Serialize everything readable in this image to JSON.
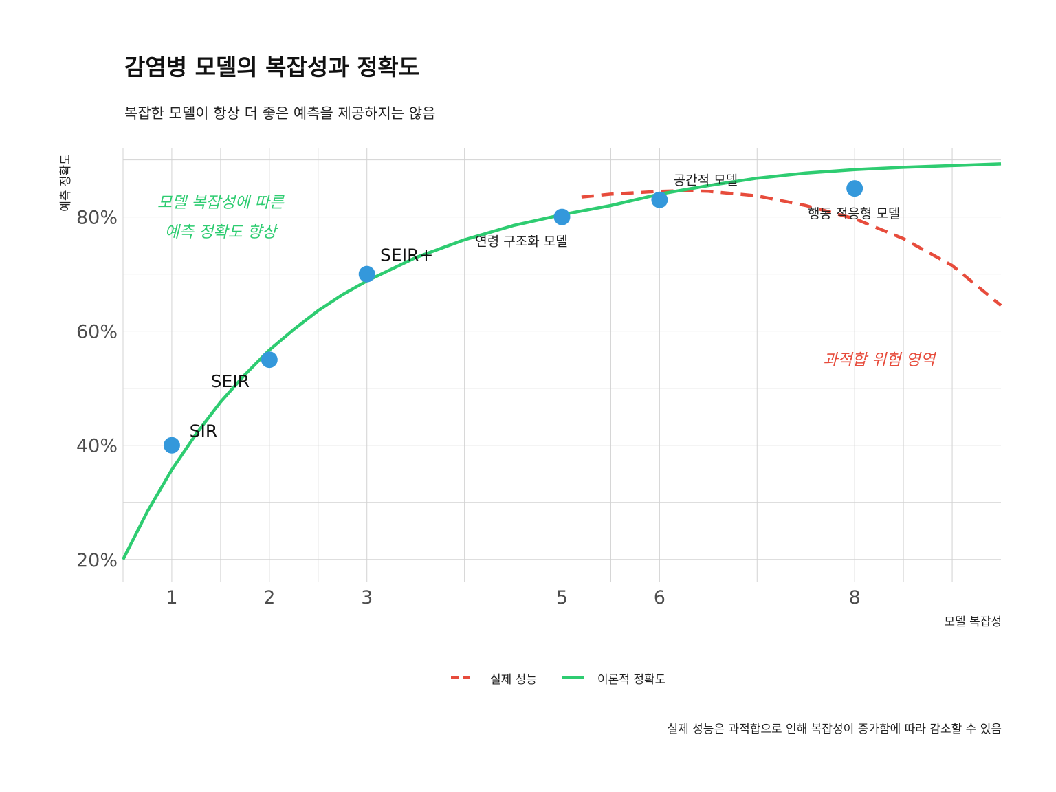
{
  "chart_data": {
    "type": "line",
    "title": "감염병 모델의 복잡성과 정확도",
    "subtitle": "복잡한 모델이 항상 더 좋은 예측을 제공하지는 않음",
    "xlabel": "모델 복잡성",
    "ylabel": "예측 정확도",
    "caption": "실제 성능은 과적합으로 인해 복잡성이 증가함에 따라 감소할 수 있음",
    "xlim": [
      0.5,
      9.5
    ],
    "ylim": [
      0.16,
      0.92
    ],
    "x_ticks": [
      {
        "value": 1,
        "label": "1"
      },
      {
        "value": 2,
        "label": "2"
      },
      {
        "value": 3,
        "label": "3"
      },
      {
        "value": 5,
        "label": "5"
      },
      {
        "value": 6,
        "label": "6"
      },
      {
        "value": 8,
        "label": "8"
      }
    ],
    "x_gridlines": [
      0.5,
      1,
      1.5,
      2,
      2.5,
      3,
      4,
      5,
      5.5,
      6,
      7,
      8,
      8.5,
      9
    ],
    "y_ticks": [
      {
        "value": 0.2,
        "label": "20%"
      },
      {
        "value": 0.4,
        "label": "40%"
      },
      {
        "value": 0.6,
        "label": "60%"
      },
      {
        "value": 0.8,
        "label": "80%"
      }
    ],
    "y_gridlines": [
      0.2,
      0.3,
      0.4,
      0.5,
      0.6,
      0.7,
      0.8,
      0.9
    ],
    "series": [
      {
        "name": "이론적 정확도",
        "color": "#2ecc71",
        "style": "solid",
        "x": [
          0.5,
          0.75,
          1,
          1.25,
          1.5,
          1.75,
          2,
          2.25,
          2.5,
          2.75,
          3,
          3.5,
          4,
          4.5,
          5,
          5.5,
          6,
          6.5,
          7,
          7.5,
          8,
          8.5,
          9,
          9.5
        ],
        "y": [
          0.2,
          0.284,
          0.357,
          0.42,
          0.476,
          0.524,
          0.567,
          0.603,
          0.636,
          0.664,
          0.688,
          0.729,
          0.76,
          0.785,
          0.804,
          0.82,
          0.84,
          0.855,
          0.868,
          0.877,
          0.883,
          0.887,
          0.89,
          0.893
        ]
      },
      {
        "name": "실제 성능",
        "color": "#e74c3c",
        "style": "dashed",
        "x": [
          5.2,
          5.5,
          6,
          6.25,
          6.5,
          7,
          7.5,
          8,
          8.5,
          9,
          9.5
        ],
        "y": [
          0.835,
          0.84,
          0.845,
          0.846,
          0.845,
          0.837,
          0.82,
          0.797,
          0.762,
          0.715,
          0.645
        ]
      }
    ],
    "points": [
      {
        "x": 1,
        "y": 0.4,
        "label": "SIR"
      },
      {
        "x": 2,
        "y": 0.55,
        "label": "SEIR"
      },
      {
        "x": 3,
        "y": 0.7,
        "label": "SEIR+"
      },
      {
        "x": 5,
        "y": 0.8,
        "label": "연령 구조화 모델"
      },
      {
        "x": 6,
        "y": 0.83,
        "label": "공간적 모델"
      },
      {
        "x": 8,
        "y": 0.85,
        "label": "행동 적응형 모델"
      }
    ],
    "point_color": "#3498db",
    "annotations": [
      {
        "lines": [
          "모델 복잡성에 따른",
          "예측 정확도 향상"
        ],
        "x": 1.5,
        "y": 0.8,
        "color": "#2ecc71"
      },
      {
        "lines": [
          "과적합 위험 영역"
        ],
        "x": 8.25,
        "y": 0.55,
        "color": "#e74c3c"
      }
    ],
    "legend": {
      "position": "bottom",
      "items": [
        {
          "label": "실제 성능",
          "color": "#e74c3c",
          "style": "dashed"
        },
        {
          "label": "이론적 정확도",
          "color": "#2ecc71",
          "style": "solid"
        }
      ]
    },
    "grid": true
  }
}
